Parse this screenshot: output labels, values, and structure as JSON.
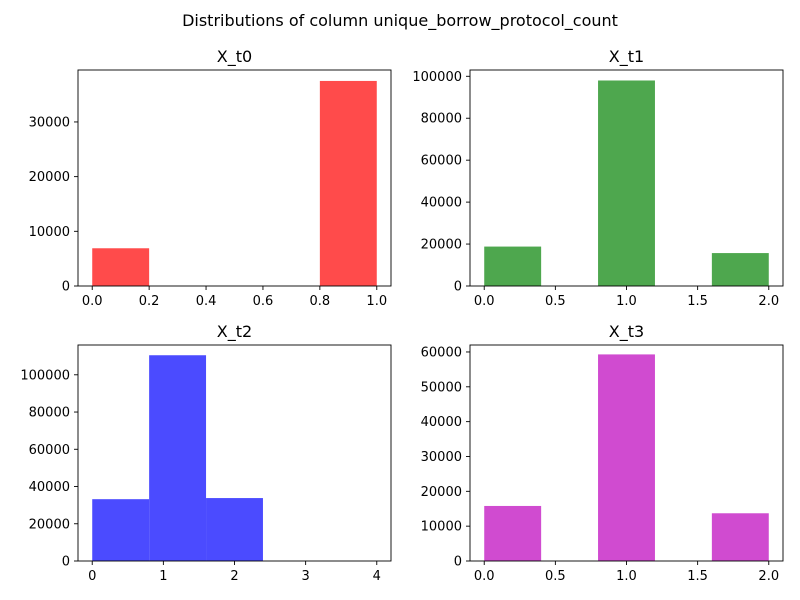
{
  "title": "Distributions of column unique_borrow_protocol_count",
  "chart_data": [
    {
      "type": "bar",
      "title": "X_t0",
      "color": "#ff4b4b",
      "xlim": [
        -0.05,
        1.05
      ],
      "ylim": [
        0,
        39500
      ],
      "xticks": [
        0.0,
        0.2,
        0.4,
        0.6,
        0.8,
        1.0
      ],
      "xtick_labels": [
        "0.0",
        "0.2",
        "0.4",
        "0.6",
        "0.8",
        "1.0"
      ],
      "yticks": [
        0,
        10000,
        20000,
        30000
      ],
      "ytick_labels": [
        "0",
        "10000",
        "20000",
        "30000"
      ],
      "bins": [
        {
          "x0": 0.0,
          "x1": 0.2,
          "value": 6900
        },
        {
          "x0": 0.8,
          "x1": 1.0,
          "value": 37500
        }
      ]
    },
    {
      "type": "bar",
      "title": "X_t1",
      "color": "#4ea74e",
      "xlim": [
        -0.1,
        2.1
      ],
      "ylim": [
        0,
        103000
      ],
      "xticks": [
        0.0,
        0.5,
        1.0,
        1.5,
        2.0
      ],
      "xtick_labels": [
        "0.0",
        "0.5",
        "1.0",
        "1.5",
        "2.0"
      ],
      "yticks": [
        0,
        20000,
        40000,
        60000,
        80000,
        100000
      ],
      "ytick_labels": [
        "0",
        "20000",
        "40000",
        "60000",
        "80000",
        "100000"
      ],
      "bins": [
        {
          "x0": 0.0,
          "x1": 0.4,
          "value": 18800
        },
        {
          "x0": 0.8,
          "x1": 1.2,
          "value": 98000
        },
        {
          "x0": 1.6,
          "x1": 2.0,
          "value": 15700
        }
      ]
    },
    {
      "type": "bar",
      "title": "X_t2",
      "color": "#4b4bff",
      "xlim": [
        -0.2,
        4.2
      ],
      "ylim": [
        0,
        116000
      ],
      "xticks": [
        0,
        1,
        2,
        3,
        4
      ],
      "xtick_labels": [
        "0",
        "1",
        "2",
        "3",
        "4"
      ],
      "yticks": [
        0,
        20000,
        40000,
        60000,
        80000,
        100000
      ],
      "ytick_labels": [
        "0",
        "20000",
        "40000",
        "60000",
        "80000",
        "100000"
      ],
      "bins": [
        {
          "x0": 0.0,
          "x1": 0.8,
          "value": 33200
        },
        {
          "x0": 0.8,
          "x1": 1.6,
          "value": 110500
        },
        {
          "x0": 1.6,
          "x1": 2.4,
          "value": 33800
        }
      ]
    },
    {
      "type": "bar",
      "title": "X_t3",
      "color": "#d04bd0",
      "xlim": [
        -0.1,
        2.1
      ],
      "ylim": [
        0,
        62000
      ],
      "xticks": [
        0.0,
        0.5,
        1.0,
        1.5,
        2.0
      ],
      "xtick_labels": [
        "0.0",
        "0.5",
        "1.0",
        "1.5",
        "2.0"
      ],
      "yticks": [
        0,
        10000,
        20000,
        30000,
        40000,
        50000,
        60000
      ],
      "ytick_labels": [
        "0",
        "10000",
        "20000",
        "30000",
        "40000",
        "50000",
        "60000"
      ],
      "bins": [
        {
          "x0": 0.0,
          "x1": 0.4,
          "value": 15800
        },
        {
          "x0": 0.8,
          "x1": 1.2,
          "value": 59300
        },
        {
          "x0": 1.6,
          "x1": 2.0,
          "value": 13700
        }
      ]
    }
  ]
}
